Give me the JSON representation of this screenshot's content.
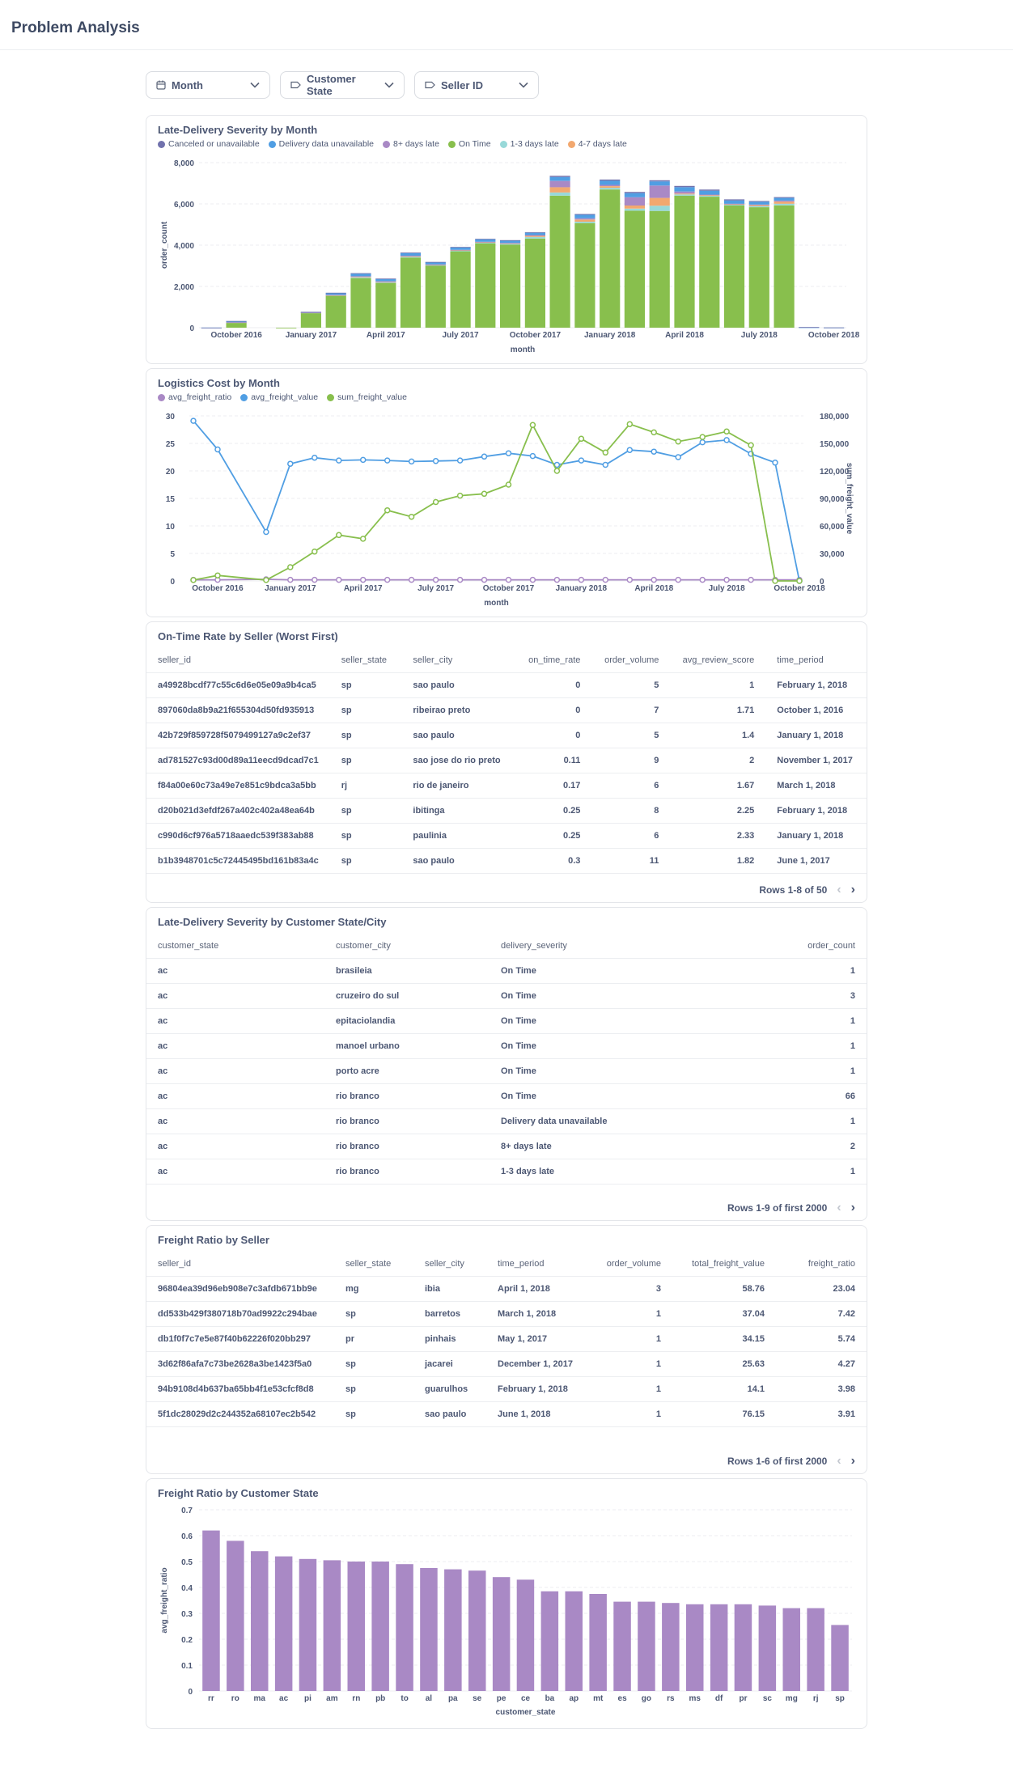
{
  "page": {
    "title": "Problem Analysis"
  },
  "filters": [
    {
      "label": "Month",
      "icon": "calendar-icon"
    },
    {
      "label": "Customer State",
      "icon": "tag-icon"
    },
    {
      "label": "Seller ID",
      "icon": "tag-icon"
    }
  ],
  "colors": {
    "canceled": "#7172ad",
    "unavailable": "#509ee3",
    "late8": "#a989c5",
    "ontime": "#88bf4d",
    "late13": "#98d9d9",
    "late47": "#f2a86f",
    "purple": "#a989c5"
  },
  "card1": {
    "title": "Late-Delivery Severity by Month"
  },
  "card2": {
    "title": "Logistics Cost by Month"
  },
  "card3": {
    "title": "On-Time Rate by Seller (Worst First)",
    "pager": "Rows 1-8 of 50"
  },
  "card4": {
    "title": "Late-Delivery Severity by Customer State/City",
    "pager": "Rows 1-9 of first 2000"
  },
  "card5": {
    "title": "Freight Ratio by Seller",
    "pager": "Rows 1-6 of first 2000"
  },
  "card6": {
    "title": "Freight Ratio by Customer State"
  },
  "chart_data": [
    {
      "type": "bar",
      "stacked": true,
      "title": "Late-Delivery Severity by Month",
      "xlabel": "month",
      "ylabel": "order_count",
      "ylim": [
        0,
        8000
      ],
      "yticks": [
        0,
        2000,
        4000,
        6000,
        8000
      ],
      "ytick_labels": [
        "0",
        "2,000",
        "4,000",
        "6,000",
        "8,000"
      ],
      "xtick_labels": [
        "October 2016",
        "January 2017",
        "April 2017",
        "July 2017",
        "October 2017",
        "January 2018",
        "April 2018",
        "July 2018",
        "October 2018"
      ],
      "legend_position": "top-left",
      "categories": [
        "2016-09",
        "2016-10",
        "2016-11",
        "2016-12",
        "2017-01",
        "2017-02",
        "2017-03",
        "2017-04",
        "2017-05",
        "2017-06",
        "2017-07",
        "2017-08",
        "2017-09",
        "2017-10",
        "2017-11",
        "2017-12",
        "2018-01",
        "2018-02",
        "2018-03",
        "2018-04",
        "2018-05",
        "2018-06",
        "2018-07",
        "2018-08",
        "2018-09",
        "2018-10"
      ],
      "series": [
        {
          "name": "Canceled or unavailable",
          "color": "#7172ad",
          "values": [
            2,
            26,
            0,
            0,
            10,
            20,
            30,
            25,
            30,
            25,
            30,
            30,
            25,
            30,
            60,
            40,
            60,
            60,
            55,
            60,
            55,
            50,
            40,
            40,
            15,
            5
          ]
        },
        {
          "name": "Delivery data unavailable",
          "color": "#509ee3",
          "values": [
            2,
            30,
            0,
            0,
            20,
            80,
            120,
            110,
            120,
            100,
            110,
            110,
            110,
            110,
            190,
            170,
            200,
            200,
            200,
            210,
            190,
            160,
            130,
            130,
            15,
            5
          ]
        },
        {
          "name": "8+ days late",
          "color": "#a989c5",
          "values": [
            0,
            4,
            0,
            0,
            5,
            15,
            25,
            20,
            25,
            15,
            15,
            15,
            20,
            40,
            300,
            60,
            60,
            400,
            600,
            100,
            30,
            20,
            30,
            50,
            0,
            0
          ]
        },
        {
          "name": "On Time",
          "color": "#88bf4d",
          "values": [
            0,
            250,
            0,
            1,
            720,
            1550,
            2400,
            2170,
            3400,
            3000,
            3700,
            4090,
            4020,
            4320,
            6400,
            5070,
            6700,
            5670,
            5660,
            6400,
            6350,
            5920,
            5840,
            5930,
            0,
            0
          ]
        },
        {
          "name": "1-3 days late",
          "color": "#98d9d9",
          "values": [
            0,
            10,
            0,
            0,
            10,
            20,
            40,
            30,
            40,
            30,
            40,
            40,
            40,
            80,
            150,
            70,
            80,
            100,
            250,
            60,
            40,
            40,
            50,
            80,
            0,
            0
          ]
        },
        {
          "name": "4-7 days late",
          "color": "#f2a86f",
          "values": [
            0,
            4,
            0,
            0,
            5,
            10,
            30,
            25,
            25,
            20,
            20,
            20,
            30,
            50,
            260,
            100,
            80,
            150,
            380,
            40,
            30,
            30,
            50,
            100,
            0,
            0
          ]
        }
      ]
    },
    {
      "type": "line",
      "title": "Logistics Cost by Month",
      "xlabel": "month",
      "ylabel_right": "sum_freight_value",
      "ylim_left": [
        0,
        30
      ],
      "ylim_right": [
        0,
        180000
      ],
      "yticks_left": [
        "0",
        "5",
        "10",
        "15",
        "20",
        "25",
        "30"
      ],
      "yticks_right": [
        "0",
        "30,000",
        "60,000",
        "90,000",
        "120,000",
        "150,000",
        "180,000"
      ],
      "xtick_labels": [
        "October 2016",
        "January 2017",
        "April 2017",
        "July 2017",
        "October 2017",
        "January 2018",
        "April 2018",
        "July 2018",
        "October 2018"
      ],
      "legend_position": "top-left",
      "categories": [
        "2016-09",
        "2016-10",
        "2016-12",
        "2017-01",
        "2017-02",
        "2017-03",
        "2017-04",
        "2017-05",
        "2017-06",
        "2017-07",
        "2017-08",
        "2017-09",
        "2017-10",
        "2017-11",
        "2017-12",
        "2018-01",
        "2018-02",
        "2018-03",
        "2018-04",
        "2018-05",
        "2018-06",
        "2018-07",
        "2018-08",
        "2018-09",
        "2018-10"
      ],
      "series": [
        {
          "name": "avg_freight_ratio",
          "axis": "left",
          "color": "#a989c5",
          "values": [
            0.2,
            0.2,
            0.3,
            0.2,
            0.2,
            0.2,
            0.2,
            0.2,
            0.2,
            0.2,
            0.2,
            0.2,
            0.2,
            0.2,
            0.2,
            0.2,
            0.2,
            0.2,
            0.2,
            0.2,
            0.2,
            0.2,
            0.2,
            0.2,
            0.2
          ]
        },
        {
          "name": "avg_freight_value",
          "axis": "left",
          "color": "#509ee3",
          "values": [
            29.1,
            23.9,
            8.9,
            21.3,
            22.4,
            21.9,
            22.0,
            21.9,
            21.7,
            21.8,
            21.9,
            22.6,
            23.2,
            22.7,
            21.1,
            21.9,
            21.1,
            23.8,
            23.5,
            22.5,
            25.2,
            25.6,
            23.1,
            21.5,
            0
          ]
        },
        {
          "name": "sum_freight_value",
          "axis": "right",
          "color": "#88bf4d",
          "values": [
            1000,
            6000,
            1000,
            15000,
            32000,
            50000,
            46000,
            77000,
            70000,
            86000,
            93000,
            95000,
            105000,
            170000,
            120000,
            155000,
            140000,
            171000,
            162000,
            152000,
            157000,
            163000,
            148000,
            0,
            0
          ]
        }
      ]
    },
    {
      "type": "table",
      "title": "On-Time Rate by Seller (Worst First)",
      "columns": [
        "seller_id",
        "seller_state",
        "seller_city",
        "on_time_rate",
        "order_volume",
        "avg_review_score",
        "time_period"
      ],
      "rows": [
        [
          "a49928bcdf77c55c6d6e05e09a9b4ca5",
          "sp",
          "sao paulo",
          "0",
          "5",
          "1",
          "February 1, 2018"
        ],
        [
          "897060da8b9a21f655304d50fd935913",
          "sp",
          "ribeirao preto",
          "0",
          "7",
          "1.71",
          "October 1, 2016"
        ],
        [
          "42b729f859728f5079499127a9c2ef37",
          "sp",
          "sao paulo",
          "0",
          "5",
          "1.4",
          "January 1, 2018"
        ],
        [
          "ad781527c93d00d89a11eecd9dcad7c1",
          "sp",
          "sao jose do rio preto",
          "0.11",
          "9",
          "2",
          "November 1, 2017"
        ],
        [
          "f84a00e60c73a49e7e851c9bdca3a5bb",
          "rj",
          "rio de janeiro",
          "0.17",
          "6",
          "1.67",
          "March 1, 2018"
        ],
        [
          "d20b021d3efdf267a402c402a48ea64b",
          "sp",
          "ibitinga",
          "0.25",
          "8",
          "2.25",
          "February 1, 2018"
        ],
        [
          "c990d6cf976a5718aaedc539f383ab88",
          "sp",
          "paulinia",
          "0.25",
          "6",
          "2.33",
          "January 1, 2018"
        ],
        [
          "b1b3948701c5c72445495bd161b83a4c",
          "sp",
          "sao paulo",
          "0.3",
          "11",
          "1.82",
          "June 1, 2017"
        ]
      ]
    },
    {
      "type": "table",
      "title": "Late-Delivery Severity by Customer State/City",
      "columns": [
        "customer_state",
        "customer_city",
        "delivery_severity",
        "order_count"
      ],
      "rows": [
        [
          "ac",
          "brasileia",
          "On Time",
          "1"
        ],
        [
          "ac",
          "cruzeiro do sul",
          "On Time",
          "3"
        ],
        [
          "ac",
          "epitaciolandia",
          "On Time",
          "1"
        ],
        [
          "ac",
          "manoel urbano",
          "On Time",
          "1"
        ],
        [
          "ac",
          "porto acre",
          "On Time",
          "1"
        ],
        [
          "ac",
          "rio branco",
          "On Time",
          "66"
        ],
        [
          "ac",
          "rio branco",
          "Delivery data unavailable",
          "1"
        ],
        [
          "ac",
          "rio branco",
          "8+ days late",
          "2"
        ],
        [
          "ac",
          "rio branco",
          "1-3 days late",
          "1"
        ]
      ]
    },
    {
      "type": "table",
      "title": "Freight Ratio by Seller",
      "columns": [
        "seller_id",
        "seller_state",
        "seller_city",
        "time_period",
        "order_volume",
        "total_freight_value",
        "freight_ratio"
      ],
      "rows": [
        [
          "96804ea39d96eb908e7c3afdb671bb9e",
          "mg",
          "ibia",
          "April 1, 2018",
          "3",
          "58.76",
          "23.04"
        ],
        [
          "dd533b429f380718b70ad9922c294bae",
          "sp",
          "barretos",
          "March 1, 2018",
          "1",
          "37.04",
          "7.42"
        ],
        [
          "db1f0f7c7e5e87f40b62226f020bb297",
          "pr",
          "pinhais",
          "May 1, 2017",
          "1",
          "34.15",
          "5.74"
        ],
        [
          "3d62f86afa7c73be2628a3be1423f5a0",
          "sp",
          "jacarei",
          "December 1, 2017",
          "1",
          "25.63",
          "4.27"
        ],
        [
          "94b9108d4b637ba65bb4f1e53cfcf8d8",
          "sp",
          "guarulhos",
          "February 1, 2018",
          "1",
          "14.1",
          "3.98"
        ],
        [
          "5f1dc28029d2c244352a68107ec2b542",
          "sp",
          "sao paulo",
          "June 1, 2018",
          "1",
          "76.15",
          "3.91"
        ]
      ]
    },
    {
      "type": "bar",
      "title": "Freight Ratio by Customer State",
      "xlabel": "customer_state",
      "ylabel": "avg_freight_ratio",
      "ylim": [
        0,
        0.7
      ],
      "yticks": [
        "0",
        "0.1",
        "0.2",
        "0.3",
        "0.4",
        "0.5",
        "0.6",
        "0.7"
      ],
      "color": "#a989c5",
      "categories": [
        "rr",
        "ro",
        "ma",
        "ac",
        "pi",
        "am",
        "rn",
        "pb",
        "to",
        "al",
        "pa",
        "se",
        "pe",
        "ce",
        "ba",
        "ap",
        "mt",
        "es",
        "go",
        "rs",
        "ms",
        "df",
        "pr",
        "sc",
        "mg",
        "rj",
        "sp"
      ],
      "values": [
        0.62,
        0.58,
        0.54,
        0.52,
        0.51,
        0.505,
        0.5,
        0.5,
        0.49,
        0.475,
        0.47,
        0.465,
        0.44,
        0.43,
        0.385,
        0.385,
        0.375,
        0.345,
        0.345,
        0.34,
        0.335,
        0.335,
        0.335,
        0.33,
        0.32,
        0.32,
        0.255
      ]
    }
  ]
}
